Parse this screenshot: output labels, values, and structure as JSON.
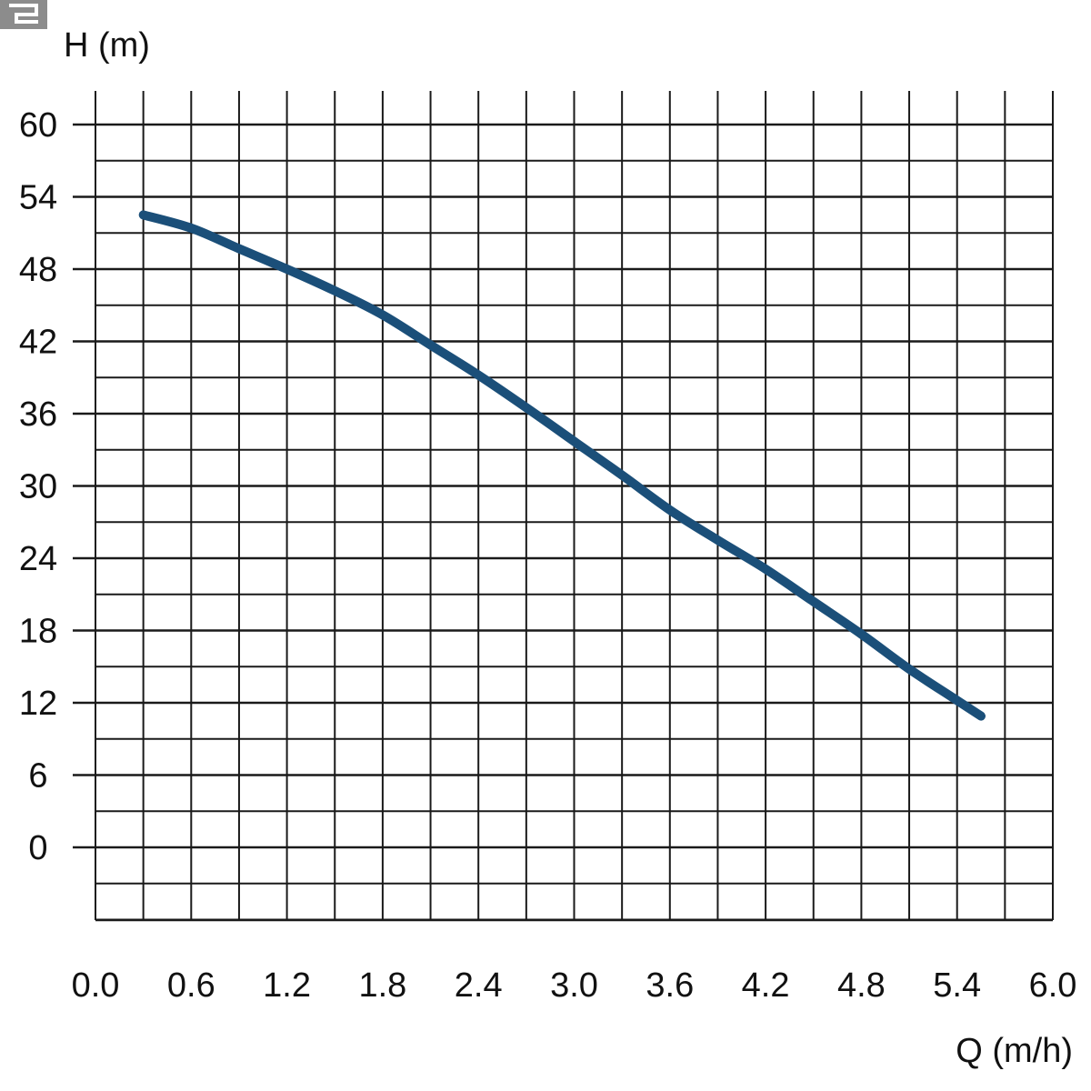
{
  "chart_data": {
    "type": "line",
    "title": "",
    "ylabel": "H (m)",
    "xlabel": "Q (m/h)",
    "x_ticks": [
      "0.0",
      "0.6",
      "1.2",
      "1.8",
      "2.4",
      "3.0",
      "3.6",
      "4.2",
      "4.8",
      "5.4",
      "6.0"
    ],
    "y_ticks": [
      "60",
      "54",
      "48",
      "42",
      "36",
      "30",
      "24",
      "18",
      "12",
      "6",
      "0"
    ],
    "xlim": [
      0,
      6.0
    ],
    "ylim": [
      -6,
      63
    ],
    "grid": true,
    "series": [
      {
        "color": "#1b4f79",
        "x": [
          0.3,
          0.6,
          0.9,
          1.2,
          1.5,
          1.8,
          2.1,
          2.4,
          2.7,
          3.0,
          3.3,
          3.6,
          3.9,
          4.2,
          4.5,
          4.8,
          5.1,
          5.4,
          5.55
        ],
        "y": [
          52.5,
          51.4,
          49.7,
          48.0,
          46.2,
          44.2,
          41.7,
          39.2,
          36.5,
          33.7,
          30.9,
          28.0,
          25.5,
          23.1,
          20.4,
          17.7,
          14.8,
          12.2,
          10.9
        ]
      }
    ]
  },
  "colors": {
    "grid": "#1a1a1a",
    "curve": "#1b4f79",
    "corner_mark": "#8c8c8c"
  }
}
